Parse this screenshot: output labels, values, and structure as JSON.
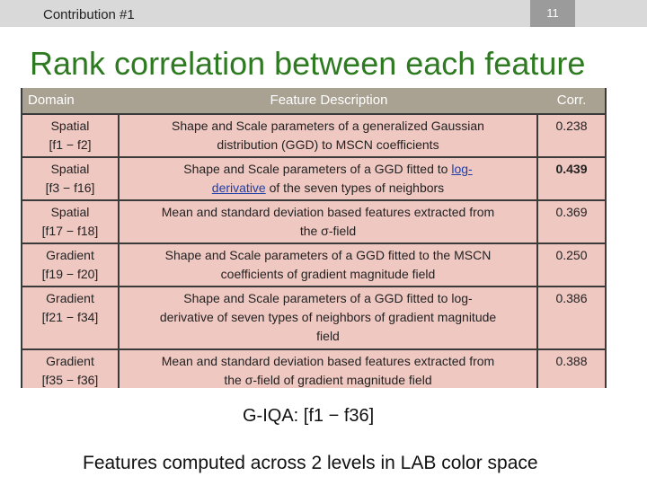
{
  "header": {
    "section": "Contribution #1",
    "page_number": "11"
  },
  "title": "Rank correlation between each feature",
  "table": {
    "columns": [
      "Domain",
      "Feature Description",
      "Corr."
    ],
    "rows": [
      {
        "domain_line1": "Spatial",
        "domain_line2": "[f1 − f2]",
        "desc_line1": "Shape and Scale parameters of a generalized Gaussian",
        "desc_line2": "distribution (GGD) to MSCN coefficients",
        "corr": "0.238"
      },
      {
        "domain_line1": "Spatial",
        "domain_line2": "[f3 − f16]",
        "desc_line1_a": "Shape and Scale parameters of a GGD fitted to ",
        "desc_line1_b": "log-",
        "desc_line2_a": "derivative",
        "desc_line2_b": " of the seven types of neighbors",
        "corr": "0.439"
      },
      {
        "domain_line1": "Spatial",
        "domain_line2": "[f17 − f18]",
        "desc_line1": "Mean and standard deviation based features extracted from",
        "desc_line2": "the σ-field",
        "corr": "0.369"
      },
      {
        "domain_line1": "Gradient",
        "domain_line2": "[f19 − f20]",
        "desc_line1": "Shape and Scale parameters of a GGD fitted to the MSCN",
        "desc_line2": "coefficients of gradient magnitude field",
        "corr": "0.250"
      },
      {
        "domain_line1": "Gradient",
        "domain_line2": "[f21 − f34]",
        "desc_line1": "Shape and Scale parameters of a GGD fitted to log-",
        "desc_line2": "derivative of seven types of neighbors of gradient magnitude",
        "desc_line3": "field",
        "corr": "0.386"
      },
      {
        "domain_line1": "Gradient",
        "domain_line2": "[f35 − f36]",
        "desc_line1": "Mean and standard deviation based features extracted from",
        "desc_line2": "the σ-field of gradient magnitude field",
        "corr": "0.388"
      }
    ]
  },
  "g_iqa": "G-IQA:  [f1 − f36]",
  "footer": "Features computed across 2 levels in LAB color space",
  "colors": {
    "title": "#2e7a21",
    "header_bg": "#a9a191",
    "cell_bg": "#f0c8c2",
    "border": "#3a3a3a",
    "link": "#1f3fa8"
  }
}
